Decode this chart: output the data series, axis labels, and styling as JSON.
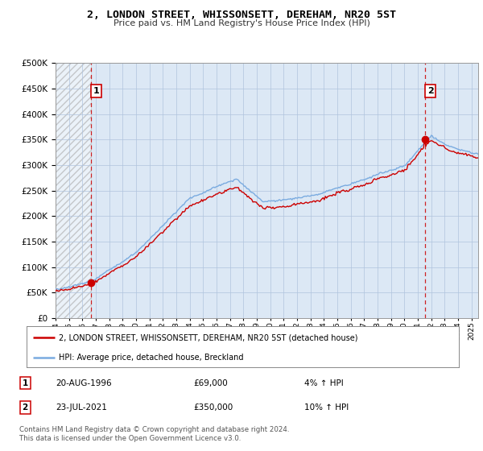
{
  "title": "2, LONDON STREET, WHISSONSETT, DEREHAM, NR20 5ST",
  "subtitle": "Price paid vs. HM Land Registry's House Price Index (HPI)",
  "ylim": [
    0,
    500000
  ],
  "yticks": [
    0,
    50000,
    100000,
    150000,
    200000,
    250000,
    300000,
    350000,
    400000,
    450000,
    500000
  ],
  "ytick_labels": [
    "£0",
    "£50K",
    "£100K",
    "£150K",
    "£200K",
    "£250K",
    "£300K",
    "£350K",
    "£400K",
    "£450K",
    "£500K"
  ],
  "hpi_color": "#7aabe0",
  "price_color": "#cc0000",
  "annotation_box_color": "#cc0000",
  "plot_bg": "#dce8f5",
  "grid_color": "#b0c4de",
  "purchase1": {
    "date_idx": 1996.64,
    "price": 69000,
    "label": "1",
    "annotation": "20-AUG-1996",
    "amount": "£69,000",
    "hpi_note": "4% ↑ HPI"
  },
  "purchase2": {
    "date_idx": 2021.55,
    "price": 350000,
    "label": "2",
    "annotation": "23-JUL-2021",
    "amount": "£350,000",
    "hpi_note": "10% ↑ HPI"
  },
  "legend_line1": "2, LONDON STREET, WHISSONSETT, DEREHAM, NR20 5ST (detached house)",
  "legend_line2": "HPI: Average price, detached house, Breckland",
  "footer": "Contains HM Land Registry data © Crown copyright and database right 2024.\nThis data is licensed under the Open Government Licence v3.0.",
  "xmin": 1994,
  "xmax": 2025.5
}
